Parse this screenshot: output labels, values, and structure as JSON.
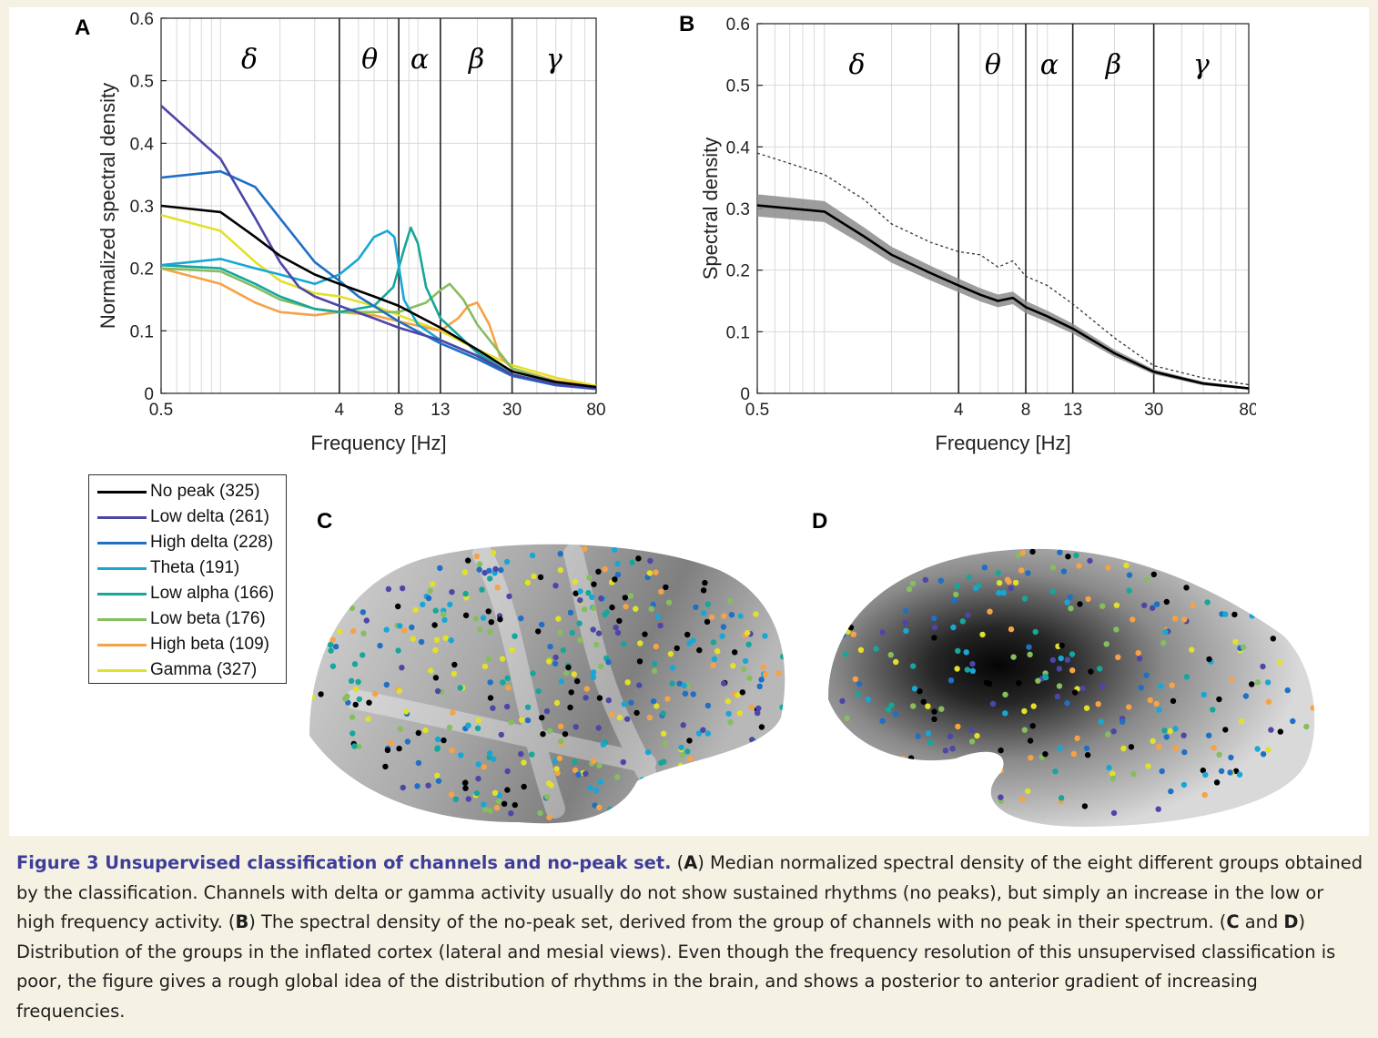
{
  "chart_data": [
    {
      "panel": "A",
      "type": "line",
      "xscale": "log",
      "xlabel": "Frequency [Hz]",
      "ylabel": "Normalized spectral density",
      "xlim": [
        0.5,
        80
      ],
      "ylim": [
        0,
        0.6
      ],
      "xticks": [
        0.5,
        4,
        8,
        13,
        30,
        80
      ],
      "xtick_labels": [
        "0.5",
        "4",
        "8",
        "13",
        "30",
        "80"
      ],
      "yticks": [
        0,
        0.1,
        0.2,
        0.3,
        0.4,
        0.5,
        0.6
      ],
      "ytick_labels": [
        "0",
        "0.1",
        "0.2",
        "0.3",
        "0.4",
        "0.5",
        "0.6"
      ],
      "grid": true,
      "band_lines": [
        4,
        8,
        13,
        30
      ],
      "band_labels": [
        {
          "label": "δ",
          "freq": 1.4
        },
        {
          "label": "θ",
          "freq": 5.7
        },
        {
          "label": "α",
          "freq": 10.2
        },
        {
          "label": "β",
          "freq": 19.8
        },
        {
          "label": "γ",
          "freq": 49
        }
      ],
      "series": [
        {
          "name": "No peak (325)",
          "color": "#000000",
          "points": [
            [
              0.5,
              0.3
            ],
            [
              1,
              0.29
            ],
            [
              1.5,
              0.25
            ],
            [
              2,
              0.22
            ],
            [
              3,
              0.19
            ],
            [
              4,
              0.175
            ],
            [
              6,
              0.155
            ],
            [
              8,
              0.14
            ],
            [
              13,
              0.105
            ],
            [
              20,
              0.07
            ],
            [
              30,
              0.035
            ],
            [
              50,
              0.018
            ],
            [
              80,
              0.01
            ]
          ]
        },
        {
          "name": "Low delta (261)",
          "color": "#4c46a8",
          "points": [
            [
              0.5,
              0.46
            ],
            [
              1,
              0.375
            ],
            [
              1.5,
              0.28
            ],
            [
              2,
              0.21
            ],
            [
              2.5,
              0.17
            ],
            [
              3,
              0.155
            ],
            [
              4,
              0.14
            ],
            [
              6,
              0.12
            ],
            [
              8,
              0.105
            ],
            [
              13,
              0.085
            ],
            [
              20,
              0.06
            ],
            [
              30,
              0.03
            ],
            [
              50,
              0.014
            ],
            [
              80,
              0.008
            ]
          ]
        },
        {
          "name": "High delta (228)",
          "color": "#1f6fc5",
          "points": [
            [
              0.5,
              0.345
            ],
            [
              1,
              0.355
            ],
            [
              1.5,
              0.33
            ],
            [
              2,
              0.28
            ],
            [
              3,
              0.21
            ],
            [
              4,
              0.18
            ],
            [
              5,
              0.155
            ],
            [
              8,
              0.115
            ],
            [
              13,
              0.08
            ],
            [
              20,
              0.055
            ],
            [
              30,
              0.028
            ],
            [
              50,
              0.013
            ],
            [
              80,
              0.007
            ]
          ]
        },
        {
          "name": "Theta (191)",
          "color": "#17a7d6",
          "points": [
            [
              0.5,
              0.205
            ],
            [
              1,
              0.215
            ],
            [
              1.5,
              0.2
            ],
            [
              2,
              0.19
            ],
            [
              3,
              0.175
            ],
            [
              4,
              0.19
            ],
            [
              5,
              0.215
            ],
            [
              6,
              0.25
            ],
            [
              7,
              0.26
            ],
            [
              7.6,
              0.25
            ],
            [
              8.5,
              0.15
            ],
            [
              10,
              0.11
            ],
            [
              13,
              0.085
            ],
            [
              20,
              0.06
            ],
            [
              30,
              0.03
            ],
            [
              50,
              0.015
            ],
            [
              80,
              0.008
            ]
          ]
        },
        {
          "name": "Low alpha (166)",
          "color": "#16a69a",
          "points": [
            [
              0.5,
              0.205
            ],
            [
              1,
              0.2
            ],
            [
              1.5,
              0.175
            ],
            [
              2,
              0.155
            ],
            [
              3,
              0.135
            ],
            [
              4,
              0.13
            ],
            [
              6,
              0.14
            ],
            [
              7.5,
              0.17
            ],
            [
              8.5,
              0.23
            ],
            [
              9.2,
              0.265
            ],
            [
              10,
              0.24
            ],
            [
              11,
              0.17
            ],
            [
              13,
              0.12
            ],
            [
              20,
              0.065
            ],
            [
              30,
              0.03
            ],
            [
              50,
              0.015
            ],
            [
              80,
              0.008
            ]
          ]
        },
        {
          "name": "Low beta (176)",
          "color": "#86bd5e",
          "points": [
            [
              0.5,
              0.2
            ],
            [
              1,
              0.195
            ],
            [
              1.5,
              0.17
            ],
            [
              2,
              0.15
            ],
            [
              3,
              0.135
            ],
            [
              4,
              0.13
            ],
            [
              6,
              0.13
            ],
            [
              8,
              0.13
            ],
            [
              11,
              0.145
            ],
            [
              13,
              0.165
            ],
            [
              14.5,
              0.175
            ],
            [
              17,
              0.15
            ],
            [
              20,
              0.11
            ],
            [
              30,
              0.04
            ],
            [
              50,
              0.018
            ],
            [
              80,
              0.009
            ]
          ]
        },
        {
          "name": "High beta (109)",
          "color": "#f7a244",
          "points": [
            [
              0.5,
              0.2
            ],
            [
              1,
              0.175
            ],
            [
              1.5,
              0.145
            ],
            [
              2,
              0.13
            ],
            [
              3,
              0.125
            ],
            [
              4,
              0.13
            ],
            [
              6,
              0.125
            ],
            [
              8,
              0.115
            ],
            [
              13,
              0.1
            ],
            [
              16,
              0.12
            ],
            [
              18,
              0.14
            ],
            [
              20,
              0.145
            ],
            [
              23,
              0.11
            ],
            [
              26,
              0.06
            ],
            [
              30,
              0.04
            ],
            [
              50,
              0.02
            ],
            [
              80,
              0.01
            ]
          ]
        },
        {
          "name": "Gamma (327)",
          "color": "#e3e02a",
          "points": [
            [
              0.5,
              0.285
            ],
            [
              1,
              0.26
            ],
            [
              1.5,
              0.21
            ],
            [
              2,
              0.18
            ],
            [
              3,
              0.16
            ],
            [
              4,
              0.155
            ],
            [
              6,
              0.14
            ],
            [
              8,
              0.125
            ],
            [
              13,
              0.1
            ],
            [
              20,
              0.07
            ],
            [
              30,
              0.045
            ],
            [
              50,
              0.025
            ],
            [
              80,
              0.012
            ]
          ]
        }
      ]
    },
    {
      "panel": "B",
      "type": "line",
      "xscale": "log",
      "xlabel": "Frequency [Hz]",
      "ylabel": "Spectral density",
      "xlim": [
        0.5,
        80
      ],
      "ylim": [
        0,
        0.6
      ],
      "xticks": [
        0.5,
        4,
        8,
        13,
        30,
        80
      ],
      "xtick_labels": [
        "0.5",
        "4",
        "8",
        "13",
        "30",
        "80"
      ],
      "yticks": [
        0,
        0.1,
        0.2,
        0.3,
        0.4,
        0.5,
        0.6
      ],
      "ytick_labels": [
        "0",
        "0.1",
        "0.2",
        "0.3",
        "0.4",
        "0.5",
        "0.6"
      ],
      "grid": true,
      "band_lines": [
        4,
        8,
        13,
        30
      ],
      "band_labels": [
        {
          "label": "δ",
          "freq": 1.4
        },
        {
          "label": "θ",
          "freq": 5.7
        },
        {
          "label": "α",
          "freq": 10.2
        },
        {
          "label": "β",
          "freq": 19.8
        },
        {
          "label": "γ",
          "freq": 49
        }
      ],
      "median": [
        [
          0.5,
          0.305
        ],
        [
          1,
          0.295
        ],
        [
          1.5,
          0.255
        ],
        [
          2,
          0.225
        ],
        [
          3,
          0.195
        ],
        [
          4,
          0.175
        ],
        [
          5,
          0.16
        ],
        [
          6,
          0.15
        ],
        [
          7,
          0.155
        ],
        [
          8,
          0.14
        ],
        [
          10,
          0.125
        ],
        [
          13,
          0.105
        ],
        [
          20,
          0.065
        ],
        [
          30,
          0.035
        ],
        [
          50,
          0.016
        ],
        [
          80,
          0.008
        ]
      ],
      "band_halfwidth": [
        [
          0.5,
          0.018
        ],
        [
          1,
          0.017
        ],
        [
          2,
          0.013
        ],
        [
          4,
          0.011
        ],
        [
          8,
          0.01
        ],
        [
          13,
          0.008
        ],
        [
          30,
          0.004
        ],
        [
          80,
          0.002
        ]
      ],
      "reference_dotted": [
        [
          0.5,
          0.39
        ],
        [
          1,
          0.355
        ],
        [
          1.5,
          0.315
        ],
        [
          2,
          0.275
        ],
        [
          3,
          0.245
        ],
        [
          4,
          0.23
        ],
        [
          5,
          0.225
        ],
        [
          6,
          0.205
        ],
        [
          7,
          0.215
        ],
        [
          8,
          0.19
        ],
        [
          10,
          0.175
        ],
        [
          13,
          0.145
        ],
        [
          20,
          0.09
        ],
        [
          30,
          0.045
        ],
        [
          50,
          0.025
        ],
        [
          80,
          0.014
        ]
      ]
    }
  ],
  "figure": {
    "panel_labels": {
      "a": "A",
      "b": "B",
      "c": "C",
      "d": "D"
    },
    "brain_dot_colors": [
      "#000000",
      "#4c46a8",
      "#1f6fc5",
      "#17a7d6",
      "#16a69a",
      "#86bd5e",
      "#f7a244",
      "#e3e02a"
    ]
  },
  "caption": {
    "title": "Figure 3 Unsupervised classification of channels and no-peak set.",
    "A_label": "A",
    "A_text": "Median normalized spectral density of the eight different groups obtained by the classification. Channels with delta or gamma activity usually do not show sustained rhythms (no peaks), but simply an increase in the low or high frequency activity.",
    "B_label": "B",
    "B_text": "The spectral density of the no-peak set, derived from the group of channels with no peak in their spectrum.",
    "CD_label_C": "C",
    "CD_and": "and",
    "CD_label_D": "D",
    "CD_text": "Distribution of the groups in the inflated cortex (lateral and mesial views). Even though the frequency resolution of this unsupervised classification is poor, the figure gives a rough global idea of the distribution of rhythms in the brain, and shows a posterior to anterior gradient of increasing frequencies."
  }
}
